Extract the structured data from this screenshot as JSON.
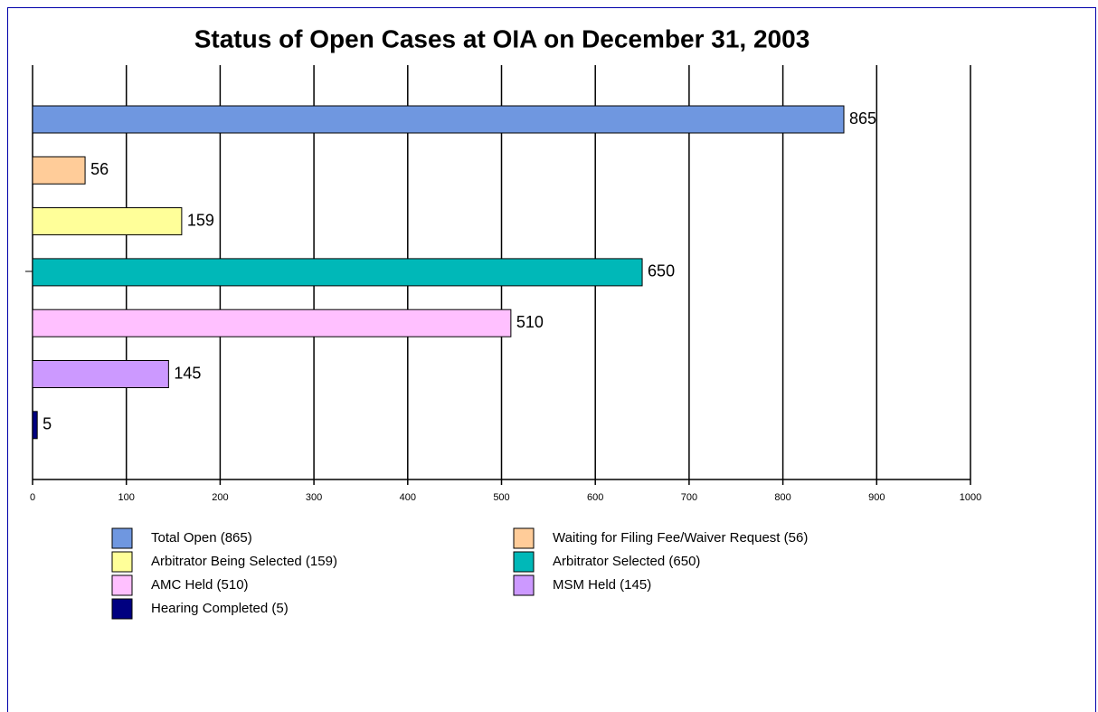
{
  "chart_data": {
    "type": "bar",
    "orientation": "horizontal",
    "title": "Status of Open Cases at OIA on December 31, 2003",
    "categories": [
      null
    ],
    "series": [
      {
        "name": "Total Open (865)",
        "color": "#6f97e0",
        "values": [
          865
        ]
      },
      {
        "name": "Waiting for Filing Fee/Waiver Request (56)",
        "color": "#ffcc99",
        "values": [
          56
        ]
      },
      {
        "name": "Arbitrator Being Selected (159)",
        "color": "#ffff99",
        "values": [
          159
        ]
      },
      {
        "name": "Arbitrator Selected (650)",
        "color": "#00b8b8",
        "values": [
          650
        ]
      },
      {
        "name": "AMC Held (510)",
        "color": "#ffc0ff",
        "values": [
          510
        ]
      },
      {
        "name": "MSM Held (145)",
        "color": "#cc99ff",
        "values": [
          145
        ]
      },
      {
        "name": "Hearing Completed (5)",
        "color": "#000080",
        "values": [
          5
        ]
      }
    ],
    "xlim": [
      0,
      1000
    ],
    "xticks": [
      0,
      100,
      200,
      300,
      400,
      500,
      600,
      700,
      800,
      900,
      1000
    ],
    "grid": true,
    "data_labels": true
  }
}
